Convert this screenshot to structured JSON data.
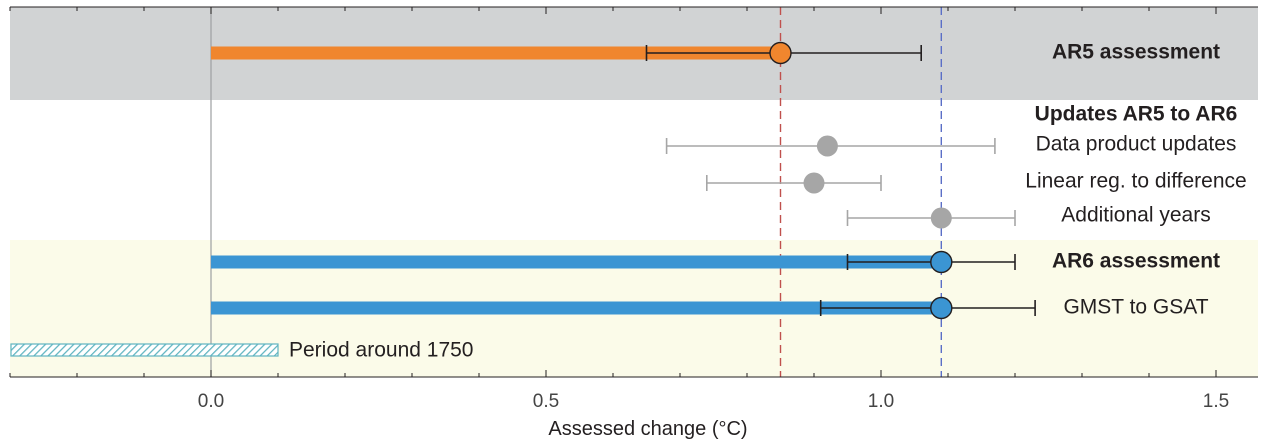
{
  "chart_data": {
    "type": "range",
    "xlabel": "Assessed change (°C)",
    "xlim": [
      -0.3,
      1.58
    ],
    "xticks": [
      {
        "value": 0.0,
        "label": "0.0"
      },
      {
        "value": 0.5,
        "label": "0.5"
      },
      {
        "value": 1.0,
        "label": "1.0"
      },
      {
        "value": 1.5,
        "label": "1.5"
      }
    ],
    "reference_lines": [
      {
        "value": 0.85,
        "color": "#c0504d",
        "style": "dashed"
      },
      {
        "value": 1.09,
        "color": "#5b6fc7",
        "style": "dashed"
      }
    ],
    "rows": [
      {
        "label": "AR5 assessment",
        "bold": true,
        "kind": "bar",
        "start": 0.0,
        "value": 0.85,
        "low": 0.65,
        "high": 1.06,
        "color": "#f0862e",
        "band": "gray"
      },
      {
        "label": "Updates AR5 to AR6",
        "bold": true,
        "kind": "heading"
      },
      {
        "label": "Data product updates",
        "bold": false,
        "kind": "point",
        "value": 0.92,
        "low": 0.68,
        "high": 1.17,
        "color": "#a6a6a6"
      },
      {
        "label": "Linear reg. to difference",
        "bold": false,
        "kind": "point",
        "value": 0.9,
        "low": 0.74,
        "high": 1.0,
        "color": "#a6a6a6"
      },
      {
        "label": "Additional years",
        "bold": false,
        "kind": "point",
        "value": 1.09,
        "low": 0.95,
        "high": 1.2,
        "color": "#a6a6a6"
      },
      {
        "label": "AR6 assessment",
        "bold": true,
        "kind": "bar",
        "start": 0.0,
        "value": 1.09,
        "low": 0.95,
        "high": 1.2,
        "color": "#3b95d3",
        "band": "yellow"
      },
      {
        "label": "GMST to GSAT",
        "bold": false,
        "kind": "bar",
        "start": 0.0,
        "value": 1.09,
        "low": 0.91,
        "high": 1.23,
        "color": "#3b95d3",
        "band": "yellow"
      }
    ],
    "period_bar": {
      "label": "Period around 1750",
      "start": -0.3,
      "end": 0.1,
      "pattern": "hatched",
      "color": "#5fb4c0"
    },
    "bands": [
      {
        "name": "gray",
        "color": "#d1d3d4"
      },
      {
        "name": "yellow",
        "color": "#fbfbe9"
      }
    ]
  }
}
